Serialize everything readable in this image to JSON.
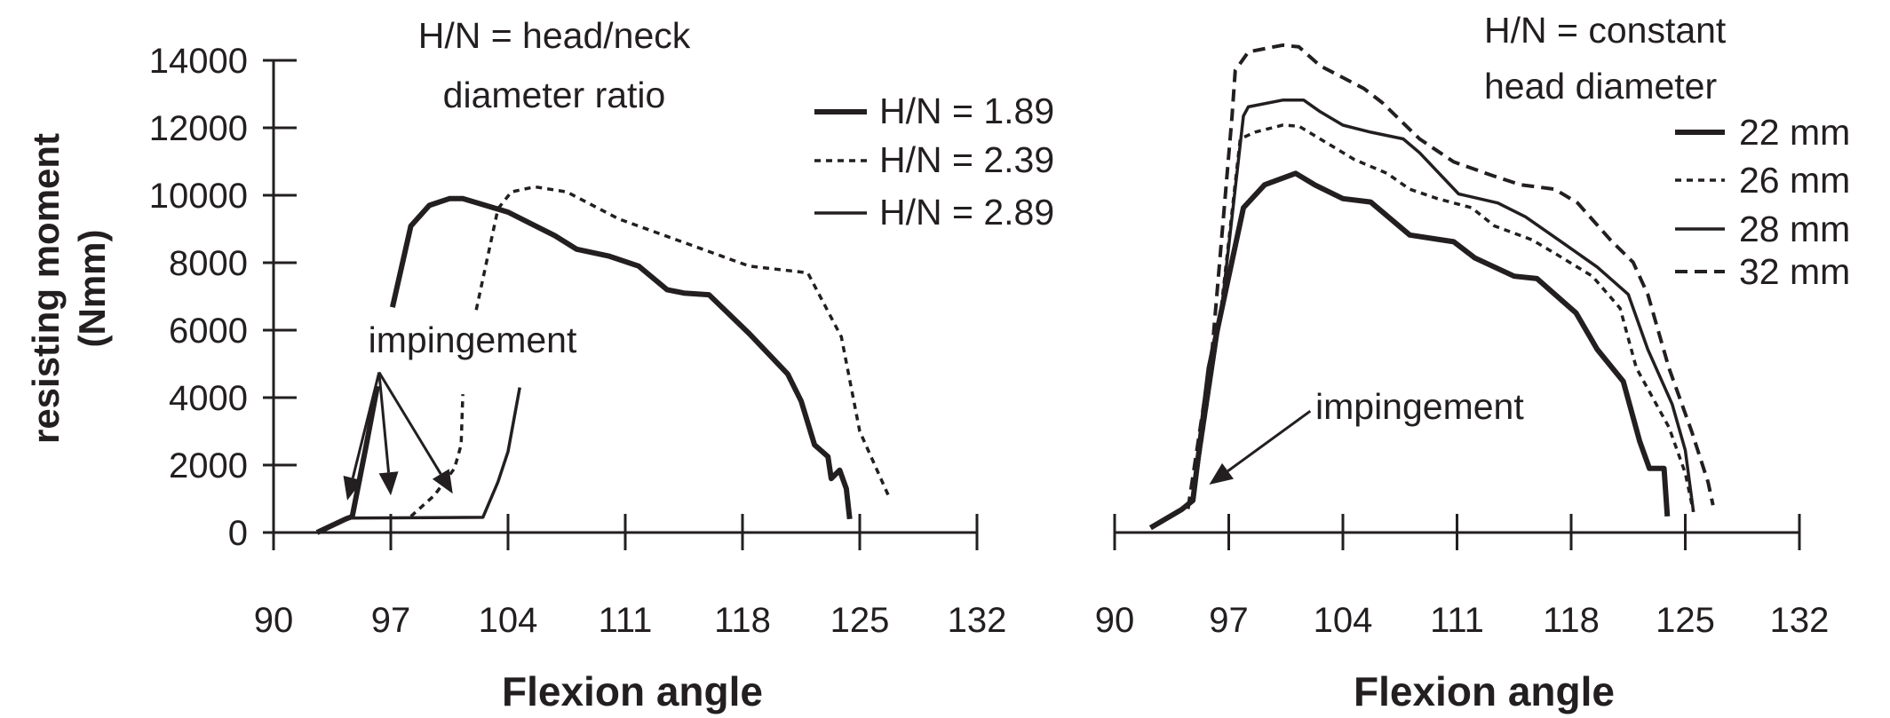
{
  "chart_data": [
    {
      "type": "line",
      "title_lines": [
        "H/N = head/neck",
        "diameter ratio"
      ],
      "xlabel": "Flexion angle",
      "ylabel_lines": [
        "resisting moment",
        "(Nmm)"
      ],
      "xlim": [
        90,
        132
      ],
      "ylim": [
        0,
        14000
      ],
      "xticks": [
        "90",
        "97",
        "104",
        "111",
        "118",
        "125",
        "132"
      ],
      "yticks": [
        "0",
        "2000",
        "4000",
        "6000",
        "8000",
        "10000",
        "12000",
        "14000"
      ],
      "legend_placement": "top-right",
      "annotation": "impingement",
      "series": [
        {
          "name": "H/N = 1.89",
          "style": "thick",
          "segments": [
            [
              [
                92.6,
                0
              ],
              [
                94.3,
                400
              ],
              [
                94.7,
                475
              ],
              [
                95.5,
                2500
              ],
              [
                96.2,
                4340
              ]
            ],
            [
              [
                97.1,
                6680
              ],
              [
                98.2,
                9090
              ],
              [
                99.3,
                9700
              ],
              [
                100.5,
                9900
              ],
              [
                101.3,
                9900
              ],
              [
                104,
                9500
              ],
              [
                106.8,
                8800
              ],
              [
                108.1,
                8400
              ],
              [
                110,
                8200
              ],
              [
                111.8,
                7900
              ],
              [
                113.5,
                7200
              ],
              [
                114.5,
                7100
              ],
              [
                116,
                7050
              ],
              [
                118.4,
                5900
              ],
              [
                120.7,
                4700
              ],
              [
                121.5,
                3900
              ],
              [
                122.3,
                2600
              ],
              [
                123.1,
                2250
              ],
              [
                123.3,
                1600
              ],
              [
                123.8,
                1850
              ],
              [
                124.2,
                1300
              ],
              [
                124.4,
                400
              ]
            ]
          ]
        },
        {
          "name": "H/N = 2.39",
          "style": "dotted",
          "segments": [
            [
              [
                98.2,
                480
              ],
              [
                99.6,
                1100
              ],
              [
                100.8,
                1900
              ],
              [
                101.2,
                2600
              ],
              [
                101.3,
                4100
              ]
            ],
            [
              [
                102.1,
                6600
              ],
              [
                103.4,
                9600
              ],
              [
                104.2,
                10100
              ],
              [
                105.6,
                10250
              ],
              [
                107.5,
                10100
              ],
              [
                110.6,
                9300
              ],
              [
                114.5,
                8600
              ],
              [
                118.4,
                7900
              ],
              [
                121.9,
                7700
              ],
              [
                123.9,
                5800
              ],
              [
                125,
                3000
              ],
              [
                126.8,
                1000
              ]
            ]
          ]
        },
        {
          "name": "H/N = 2.89",
          "style": "thin",
          "segments": [
            [
              [
                94.3,
                430
              ],
              [
                102.5,
                450
              ],
              [
                103.4,
                1500
              ],
              [
                104,
                2400
              ],
              [
                104.7,
                4300
              ]
            ]
          ]
        }
      ],
      "arrows": [
        {
          "from": [
            96.3,
            4750
          ],
          "to": [
            94.4,
            950
          ]
        },
        {
          "from": [
            96.3,
            4750
          ],
          "to": [
            97.0,
            1100
          ]
        },
        {
          "from": [
            96.3,
            4750
          ],
          "to": [
            100.7,
            1150
          ]
        }
      ]
    },
    {
      "type": "line",
      "title_lines": [
        "H/N = constant",
        "head diameter"
      ],
      "xlabel": "Flexion angle",
      "xlim": [
        90,
        132
      ],
      "ylim": [
        0,
        14000
      ],
      "xticks": [
        "90",
        "97",
        "104",
        "111",
        "118",
        "125",
        "132"
      ],
      "legend_placement": "top-right",
      "annotation": "impingement",
      "series": [
        {
          "name": "22 mm",
          "style": "thick",
          "segments": [
            [
              [
                92.2,
                140
              ],
              [
                94.1,
                680
              ],
              [
                94.8,
                950
              ],
              [
                95.8,
                4880
              ],
              [
                97,
                7600
              ],
              [
                97.9,
                9630
              ],
              [
                99.2,
                10310
              ],
              [
                101.1,
                10650
              ],
              [
                102.3,
                10300
              ],
              [
                104,
                9900
              ],
              [
                105.7,
                9800
              ],
              [
                108.1,
                8820
              ],
              [
                110.8,
                8620
              ],
              [
                112.1,
                8140
              ],
              [
                114.5,
                7600
              ],
              [
                115.9,
                7530
              ],
              [
                118.3,
                6510
              ],
              [
                119.6,
                5430
              ],
              [
                121.2,
                4480
              ],
              [
                122.2,
                2710
              ],
              [
                122.8,
                1900
              ],
              [
                123.7,
                1900
              ],
              [
                123.9,
                480
              ]
            ]
          ]
        },
        {
          "name": "26 mm",
          "style": "dotted",
          "segments": [
            [
              [
                94.8,
                950
              ],
              [
                96.5,
                6500
              ],
              [
                97.7,
                11670
              ],
              [
                98.6,
                11870
              ],
              [
                100.3,
                12080
              ],
              [
                101.3,
                12050
              ],
              [
                102.6,
                11670
              ],
              [
                104.7,
                11060
              ],
              [
                106.7,
                10650
              ],
              [
                108.1,
                10180
              ],
              [
                109.8,
                9900
              ],
              [
                111.9,
                9630
              ],
              [
                113.3,
                9090
              ],
              [
                115.6,
                8680
              ],
              [
                117,
                8280
              ],
              [
                119.3,
                7600
              ],
              [
                121,
                6650
              ],
              [
                122,
                4880
              ],
              [
                124,
                3120
              ],
              [
                125,
                1760
              ],
              [
                125.5,
                610
              ]
            ]
          ]
        },
        {
          "name": "28 mm",
          "style": "thin",
          "segments": [
            [
              [
                94.8,
                950
              ],
              [
                96.6,
                6800
              ],
              [
                97.9,
                12350
              ],
              [
                98.2,
                12620
              ],
              [
                100.3,
                12820
              ],
              [
                101.6,
                12820
              ],
              [
                102.6,
                12480
              ],
              [
                104,
                12080
              ],
              [
                105.7,
                11870
              ],
              [
                107.7,
                11670
              ],
              [
                108.7,
                11260
              ],
              [
                111.1,
                10040
              ],
              [
                113.5,
                9770
              ],
              [
                115.2,
                9360
              ],
              [
                117.6,
                8550
              ],
              [
                119.6,
                7870
              ],
              [
                121.5,
                7060
              ],
              [
                122.7,
                5430
              ],
              [
                124.2,
                3800
              ],
              [
                125,
                2440
              ],
              [
                125.5,
                610
              ]
            ]
          ]
        },
        {
          "name": "32 mm",
          "style": "dashed",
          "segments": [
            [
              [
                94.5,
                700
              ],
              [
                96,
                5500
              ],
              [
                97.2,
                12350
              ],
              [
                97.4,
                13700
              ],
              [
                98.2,
                14250
              ],
              [
                100.3,
                14450
              ],
              [
                101.3,
                14400
              ],
              [
                102.6,
                13840
              ],
              [
                105.3,
                13160
              ],
              [
                106.4,
                12750
              ],
              [
                108.7,
                11670
              ],
              [
                110.8,
                10990
              ],
              [
                113.2,
                10580
              ],
              [
                114.9,
                10310
              ],
              [
                117,
                10180
              ],
              [
                118.4,
                9770
              ],
              [
                120.4,
                8680
              ],
              [
                121.8,
                8010
              ],
              [
                122.7,
                7060
              ],
              [
                124,
                4880
              ],
              [
                125.4,
                2990
              ],
              [
                126.4,
                1490
              ],
              [
                126.7,
                810
              ]
            ]
          ]
        }
      ],
      "arrows": [
        {
          "from": [
            102,
            3600
          ],
          "to": [
            95.8,
            1420
          ]
        }
      ]
    }
  ]
}
